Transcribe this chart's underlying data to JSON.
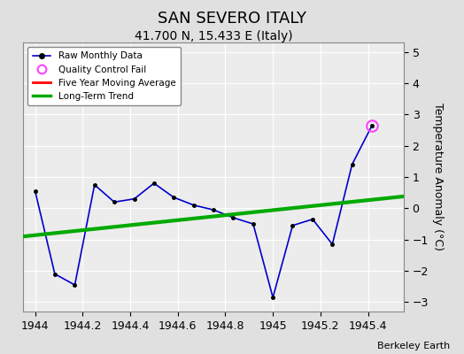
{
  "title": "SAN SEVERO ITALY",
  "subtitle": "41.700 N, 15.433 E (Italy)",
  "ylabel": "Temperature Anomaly (°C)",
  "credit": "Berkeley Earth",
  "xlim": [
    1943.95,
    1945.55
  ],
  "ylim": [
    -3.3,
    5.3
  ],
  "yticks": [
    -3,
    -2,
    -1,
    0,
    1,
    2,
    3,
    4,
    5
  ],
  "xticks": [
    1944,
    1944.2,
    1944.4,
    1944.6,
    1944.8,
    1945,
    1945.2,
    1945.4
  ],
  "xtick_labels": [
    "1944",
    "1944.2",
    "1944.4",
    "1944.6",
    "1944.8",
    "1945",
    "1945.2",
    "1945.4"
  ],
  "background_color": "#e0e0e0",
  "plot_background": "#ececec",
  "raw_x": [
    1944.0,
    1944.083,
    1944.167,
    1944.25,
    1944.333,
    1944.417,
    1944.5,
    1944.583,
    1944.667,
    1944.75,
    1944.833,
    1944.917,
    1945.0,
    1945.083,
    1945.167,
    1945.25,
    1945.333,
    1945.417
  ],
  "raw_y": [
    0.55,
    -2.1,
    -2.45,
    0.75,
    0.2,
    0.3,
    0.8,
    0.35,
    0.1,
    -0.05,
    -0.3,
    -0.5,
    -2.85,
    -0.55,
    -0.35,
    -1.15,
    1.4,
    2.65
  ],
  "qc_fail_x": [
    1945.417
  ],
  "qc_fail_y": [
    2.65
  ],
  "trend_x": [
    1943.95,
    1945.55
  ],
  "trend_y": [
    -0.9,
    0.38
  ],
  "raw_color": "#0000cc",
  "trend_color": "#00aa00",
  "qc_color": "#ff44ff",
  "title_fontsize": 13,
  "subtitle_fontsize": 10,
  "tick_fontsize": 9,
  "label_fontsize": 9
}
